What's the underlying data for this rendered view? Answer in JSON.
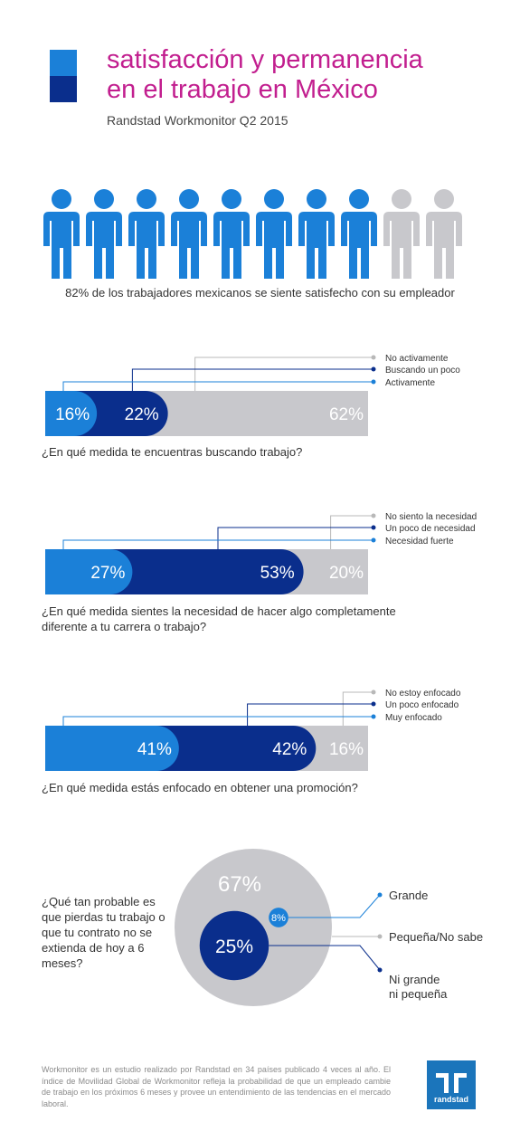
{
  "header": {
    "title": "satisfacción y permanencia\nen el trabajo en México",
    "subtitle": "Randstad Workmonitor Q2 2015"
  },
  "colors": {
    "light_blue": "#1b80d8",
    "dark_blue": "#0a2e8c",
    "gray": "#c8c8cc",
    "accent": "#c21f8f",
    "logo_blue": "#1b75bb"
  },
  "people": {
    "icon": "person-icon",
    "total": 10,
    "satisfied": 8,
    "caption": "82% de los trabajadores mexicanos se siente satisfecho con su empleador"
  },
  "chart_data": [
    {
      "type": "bar",
      "stacked": true,
      "question": "¿En qué medida te encuentras buscando trabajo?",
      "legend": [
        "No activamente",
        "Buscando un poco",
        "Activamente"
      ],
      "series": [
        {
          "name": "Activamente",
          "value": 16,
          "label": "16%"
        },
        {
          "name": "Buscando un poco",
          "value": 22,
          "label": "22%"
        },
        {
          "name": "No activamente",
          "value": 62,
          "label": "62%"
        }
      ]
    },
    {
      "type": "bar",
      "stacked": true,
      "question": "¿En qué medida sientes la necesidad de hacer algo completamente diferente a tu carrera o trabajo?",
      "legend": [
        "No siento la necesidad",
        "Un poco de necesidad",
        "Necesidad fuerte"
      ],
      "series": [
        {
          "name": "Necesidad fuerte",
          "value": 27,
          "label": "27%"
        },
        {
          "name": "Un poco de necesidad",
          "value": 53,
          "label": "53%"
        },
        {
          "name": "No siento la necesidad",
          "value": 20,
          "label": "20%"
        }
      ]
    },
    {
      "type": "bar",
      "stacked": true,
      "question": "¿En qué medida estás enfocado en obtener una promoción?",
      "legend": [
        "No estoy enfocado",
        "Un poco enfocado",
        "Muy enfocado"
      ],
      "series": [
        {
          "name": "Muy enfocado",
          "value": 41,
          "label": "41%"
        },
        {
          "name": "Un poco enfocado",
          "value": 42,
          "label": "42%"
        },
        {
          "name": "No estoy enfocado",
          "value": 16,
          "label": "16%"
        }
      ]
    },
    {
      "type": "pie",
      "question": "¿Qué tan probable es que pierdas tu trabajo o que tu contrato no se extienda de hoy a 6 meses?",
      "series": [
        {
          "name": "Pequeña/No sabe",
          "value": 67,
          "label": "67%"
        },
        {
          "name": "Grande",
          "value": 8,
          "label": "8%"
        },
        {
          "name": "Ni grande\nni pequeña",
          "value": 25,
          "label": "25%"
        }
      ]
    }
  ],
  "footer": {
    "text": "Workmonitor es un estudio realizado por Randstad en 34 países publicado 4 veces al año. El índice de Movilidad Global de Workmonitor refleja la probabilidad de que un empleado cambie de trabajo en los próximos 6 meses y provee un entendimiento de las tendencias en el mercado laboral.",
    "logo_text": "randstad"
  }
}
